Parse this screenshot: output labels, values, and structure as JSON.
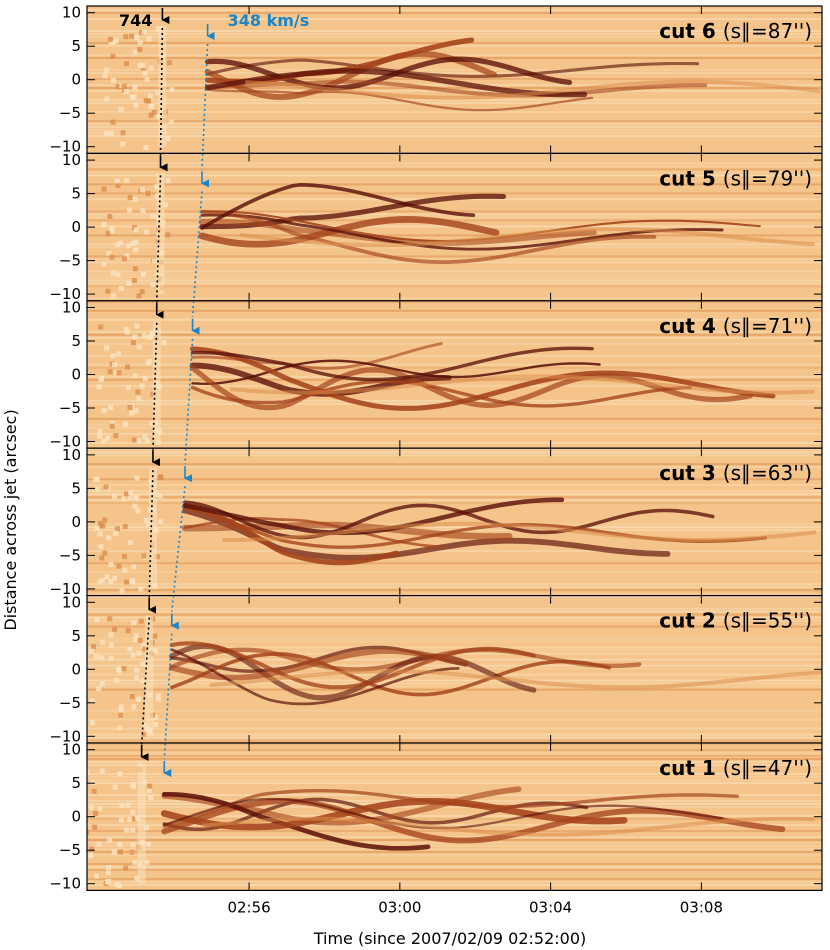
{
  "chart_data": {
    "type": "heatmap",
    "xlabel": "Time (since 2007/02/09 02:52:00)",
    "ylabel": "Distance across jet (arcsec)",
    "x_tick_labels": [
      "02:56",
      "03:00",
      "03:04",
      "03:08"
    ],
    "x_ticks_min": [
      4,
      8,
      12,
      16
    ],
    "xlim_min": [
      -0.3,
      19.2
    ],
    "ylim": [
      -11,
      11
    ],
    "y_ticks": [
      -10,
      -5,
      0,
      5,
      10
    ],
    "y_tick_labels": [
      "−10",
      "−5",
      "0",
      "5",
      "10"
    ],
    "colormap": [
      "#fbe3bf",
      "#f4c48a",
      "#dc8e4d",
      "#a4431b",
      "#5a0e06"
    ],
    "background_color": "#f4c48a",
    "annotations": {
      "black_speed": "744",
      "blue_speed": "348 km/s",
      "black_color": "#000000",
      "blue_color": "#1a86c8"
    },
    "panels": [
      {
        "label": "cut 6",
        "s_par": "87″",
        "s_par_text": "(s∥=87'')",
        "black_arrow_min": 1.7,
        "blue_arrow_min": 2.9
      },
      {
        "label": "cut 5",
        "s_par": "79″",
        "s_par_text": "(s∥=79'')",
        "black_arrow_min": 1.65,
        "blue_arrow_min": 2.75
      },
      {
        "label": "cut 4",
        "s_par": "71″",
        "s_par_text": "(s∥=71'')",
        "black_arrow_min": 1.55,
        "blue_arrow_min": 2.5
      },
      {
        "label": "cut 3",
        "s_par": "63″",
        "s_par_text": "(s∥=63'')",
        "black_arrow_min": 1.45,
        "blue_arrow_min": 2.3
      },
      {
        "label": "cut 2",
        "s_par": "55″",
        "s_par_text": "(s∥=55'')",
        "black_arrow_min": 1.35,
        "blue_arrow_min": 1.95
      },
      {
        "label": "cut 1",
        "s_par": "47″",
        "s_par_text": "(s∥=47'')",
        "black_arrow_min": 1.15,
        "blue_arrow_min": 1.75
      }
    ]
  }
}
